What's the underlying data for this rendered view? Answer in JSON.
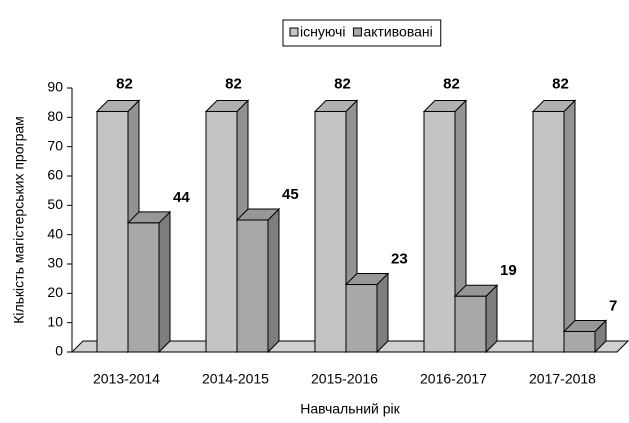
{
  "chart_data": {
    "type": "bar3d",
    "categories": [
      "2013-2014",
      "2014-2015",
      "2015-2016",
      "2016-2017",
      "2017-2018"
    ],
    "series": [
      {
        "name": "існуючі",
        "color": "#c4c4c4",
        "values": [
          82,
          82,
          82,
          82,
          82
        ]
      },
      {
        "name": "активовані",
        "color": "#a8a8a8",
        "values": [
          44,
          45,
          23,
          19,
          7
        ]
      }
    ],
    "xlabel": "Навчальний рік",
    "ylabel": "Кількість магістерських програм",
    "ylim": [
      0,
      90
    ],
    "yticks": [
      0,
      10,
      20,
      30,
      40,
      50,
      60,
      70,
      80,
      90
    ],
    "legend": "top"
  }
}
